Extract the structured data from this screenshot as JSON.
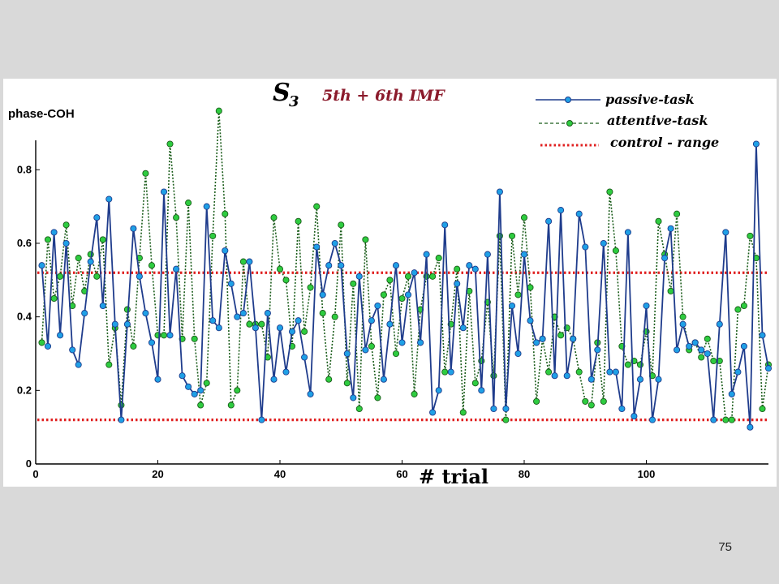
{
  "page_number": "75",
  "chart_data": {
    "type": "line",
    "subject_main": "S",
    "subject_sub": "3",
    "title": "5th + 6th IMF",
    "ylabel": "phase-COH",
    "xlabel": "# trial",
    "xlim": [
      0,
      120
    ],
    "ylim": [
      0,
      0.88
    ],
    "xticks": [
      0,
      20,
      40,
      60,
      80,
      100
    ],
    "yticks": [
      0,
      0.2,
      0.4,
      0.6,
      0.8
    ],
    "ytick_labels": [
      "0",
      "0.2",
      "0.4",
      "0.6",
      "0.8"
    ],
    "grid": false,
    "legend_position": "top-right",
    "colors": {
      "passive_line": "#1f3c8c",
      "passive_marker": "#1fa0e6",
      "attentive_line": "#1a5c1a",
      "attentive_marker": "#2ecc40",
      "control": "#e02020",
      "title": "#8b1a2b"
    },
    "control_range": {
      "name": "control - range",
      "values": [
        0.12,
        0.52
      ]
    },
    "series": [
      {
        "name": "passive-task",
        "x": [
          1,
          2,
          3,
          4,
          5,
          6,
          7,
          8,
          9,
          10,
          11,
          12,
          13,
          14,
          15,
          16,
          17,
          18,
          19,
          20,
          21,
          22,
          23,
          24,
          25,
          26,
          27,
          28,
          29,
          30,
          31,
          32,
          33,
          34,
          35,
          36,
          37,
          38,
          39,
          40,
          41,
          42,
          43,
          44,
          45,
          46,
          47,
          48,
          49,
          50,
          51,
          52,
          53,
          54,
          55,
          56,
          57,
          58,
          59,
          60,
          61,
          62,
          63,
          64,
          65,
          66,
          67,
          68,
          69,
          70,
          71,
          72,
          73,
          74,
          75,
          76,
          77,
          78,
          79,
          80,
          81,
          82,
          83,
          84,
          85,
          86,
          87,
          88,
          89,
          90,
          91,
          92,
          93,
          94,
          95,
          96,
          97,
          98,
          99,
          100,
          101,
          102,
          103,
          104,
          105,
          106,
          107,
          108,
          109,
          110,
          111,
          112,
          113,
          114,
          115,
          116,
          117,
          118,
          119,
          120
        ],
        "values": [
          0.54,
          0.32,
          0.63,
          0.35,
          0.6,
          0.31,
          0.27,
          0.41,
          0.55,
          0.67,
          0.43,
          0.72,
          0.38,
          0.12,
          0.38,
          0.64,
          0.51,
          0.41,
          0.33,
          0.23,
          0.74,
          0.35,
          0.53,
          0.24,
          0.21,
          0.19,
          0.2,
          0.7,
          0.39,
          0.37,
          0.58,
          0.49,
          0.4,
          0.41,
          0.55,
          0.37,
          0.12,
          0.41,
          0.23,
          0.37,
          0.25,
          0.36,
          0.39,
          0.29,
          0.19,
          0.59,
          0.46,
          0.54,
          0.6,
          0.54,
          0.3,
          0.18,
          0.51,
          0.31,
          0.39,
          0.43,
          0.23,
          0.38,
          0.54,
          0.33,
          0.46,
          0.52,
          0.33,
          0.57,
          0.14,
          0.2,
          0.65,
          0.25,
          0.49,
          0.37,
          0.54,
          0.53,
          0.2,
          0.57,
          0.15,
          0.74,
          0.15,
          0.43,
          0.3,
          0.57,
          0.39,
          0.33,
          0.34,
          0.66,
          0.24,
          0.69,
          0.24,
          0.34,
          0.68,
          0.59,
          0.23,
          0.31,
          0.6,
          0.25,
          0.25,
          0.15,
          0.63,
          0.13,
          0.23,
          0.43,
          0.12,
          0.23,
          0.56,
          0.64,
          0.31,
          0.38,
          0.32,
          0.33,
          0.31,
          0.3,
          0.12,
          0.38,
          0.63,
          0.19,
          0.25,
          0.32,
          0.1,
          0.87,
          0.35,
          0.26
        ]
      },
      {
        "name": "attentive-task",
        "x": [
          1,
          2,
          3,
          4,
          5,
          6,
          7,
          8,
          9,
          10,
          11,
          12,
          13,
          14,
          15,
          16,
          17,
          18,
          19,
          20,
          21,
          22,
          23,
          24,
          25,
          26,
          27,
          28,
          29,
          30,
          31,
          32,
          33,
          34,
          35,
          36,
          37,
          38,
          39,
          40,
          41,
          42,
          43,
          44,
          45,
          46,
          47,
          48,
          49,
          50,
          51,
          52,
          53,
          54,
          55,
          56,
          57,
          58,
          59,
          60,
          61,
          62,
          63,
          64,
          65,
          66,
          67,
          68,
          69,
          70,
          71,
          72,
          73,
          74,
          75,
          76,
          77,
          78,
          79,
          80,
          81,
          82,
          83,
          84,
          85,
          86,
          87,
          88,
          89,
          90,
          91,
          92,
          93,
          94,
          95,
          96,
          97,
          98,
          99,
          100,
          101,
          102,
          103,
          104,
          105,
          106,
          107,
          108,
          109,
          110,
          111,
          112,
          113,
          114,
          115,
          116,
          117,
          118,
          119,
          120
        ],
        "values": [
          0.33,
          0.61,
          0.45,
          0.51,
          0.65,
          0.43,
          0.56,
          0.47,
          0.57,
          0.51,
          0.61,
          0.27,
          0.37,
          0.16,
          0.42,
          0.32,
          0.56,
          0.79,
          0.54,
          0.35,
          0.35,
          0.87,
          0.67,
          0.34,
          0.71,
          0.34,
          0.16,
          0.22,
          0.62,
          0.96,
          0.68,
          0.16,
          0.2,
          0.55,
          0.38,
          0.38,
          0.38,
          0.29,
          0.67,
          0.53,
          0.5,
          0.32,
          0.66,
          0.36,
          0.48,
          0.7,
          0.41,
          0.23,
          0.4,
          0.65,
          0.22,
          0.49,
          0.15,
          0.61,
          0.32,
          0.18,
          0.46,
          0.5,
          0.3,
          0.45,
          0.51,
          0.19,
          0.42,
          0.51,
          0.51,
          0.56,
          0.25,
          0.38,
          0.53,
          0.14,
          0.47,
          0.22,
          0.28,
          0.44,
          0.24,
          0.62,
          0.12,
          0.62,
          0.46,
          0.67,
          0.48,
          0.17,
          0.34,
          0.25,
          0.4,
          0.35,
          0.37,
          0.34,
          0.25,
          0.17,
          0.16,
          0.33,
          0.17,
          0.74,
          0.58,
          0.32,
          0.27,
          0.28,
          0.27,
          0.36,
          0.24,
          0.66,
          0.57,
          0.47,
          0.68,
          0.4,
          0.31,
          0.33,
          0.29,
          0.34,
          0.28,
          0.28,
          0.12,
          0.12,
          0.42,
          0.43,
          0.62,
          0.56,
          0.15,
          0.27
        ]
      }
    ]
  }
}
